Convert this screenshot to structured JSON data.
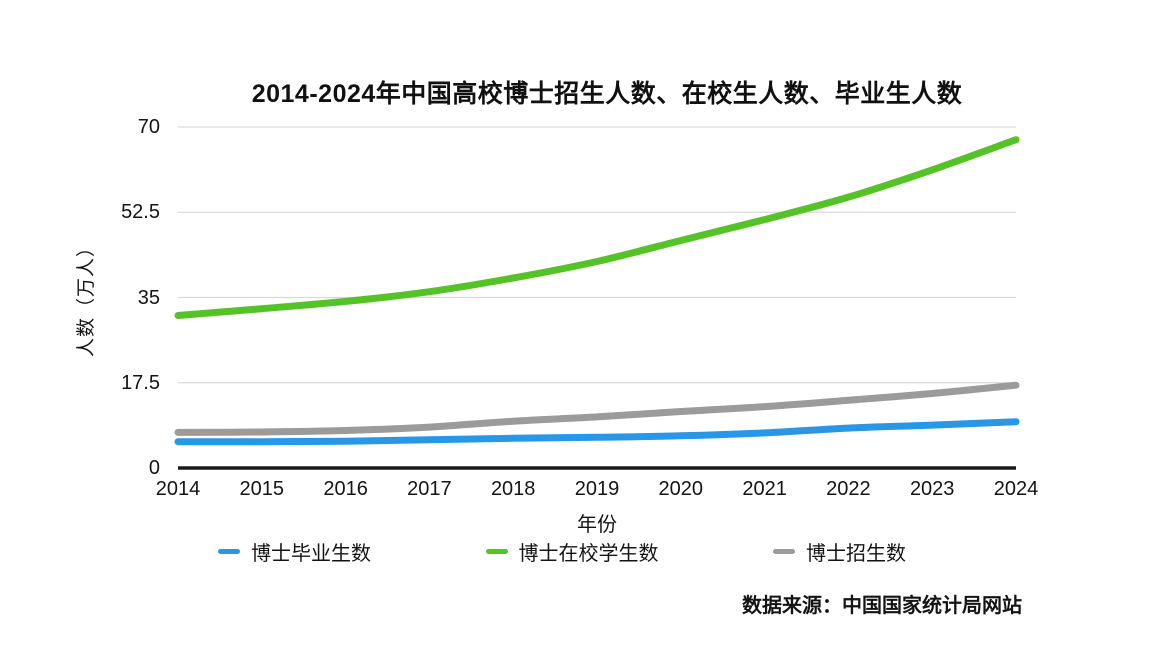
{
  "title": "2014-2024年中国高校博士招生人数、在校生人数、毕业生人数",
  "source_note": "数据来源：中国国家统计局网站",
  "colors": {
    "graduates_blue": "#2897E8",
    "enrolled_green": "#55C327",
    "admissions_gray": "#9B9B9B",
    "gridline": "#d9d9d9",
    "axis": "#1a1a1a",
    "background": "#ffffff",
    "text": "#141414"
  },
  "chart_data": {
    "type": "line",
    "title": "2014-2024年中国高校博士招生人数、在校生人数、毕业生人数",
    "xlabel": "年份",
    "ylabel": "人数（万人）",
    "x": [
      2014,
      2015,
      2016,
      2017,
      2018,
      2019,
      2020,
      2021,
      2022,
      2023,
      2024
    ],
    "ylim": [
      0,
      70
    ],
    "yticks": [
      0,
      17.5,
      35,
      52.5,
      70
    ],
    "grid": true,
    "legend_position": "bottom",
    "series": [
      {
        "name": "博士毕业生数",
        "color": "#2897E8",
        "values": [
          5.4,
          5.4,
          5.5,
          5.8,
          6.1,
          6.3,
          6.6,
          7.2,
          8.2,
          8.8,
          9.5
        ]
      },
      {
        "name": "博士在校学生数",
        "color": "#55C327",
        "values": [
          31.3,
          32.7,
          34.2,
          36.2,
          39.0,
          42.4,
          46.7,
          51.0,
          55.6,
          61.2,
          67.4
        ]
      },
      {
        "name": "博士招生数",
        "color": "#9B9B9B",
        "values": [
          7.3,
          7.4,
          7.7,
          8.4,
          9.6,
          10.5,
          11.6,
          12.6,
          13.9,
          15.3,
          17.0
        ]
      }
    ]
  }
}
